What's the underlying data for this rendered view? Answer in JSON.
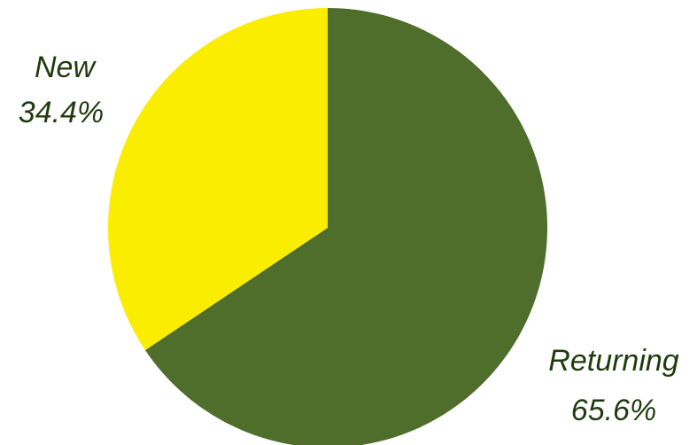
{
  "chart_data": {
    "type": "pie",
    "categories": [
      "New",
      "Returning"
    ],
    "values": [
      34.4,
      65.6
    ],
    "value_labels": [
      "34.4%",
      "65.6%"
    ],
    "colors": [
      "#fbed00",
      "#4f6e2c"
    ],
    "title": "",
    "legend": "none",
    "label_color": "#1f3b0e"
  }
}
